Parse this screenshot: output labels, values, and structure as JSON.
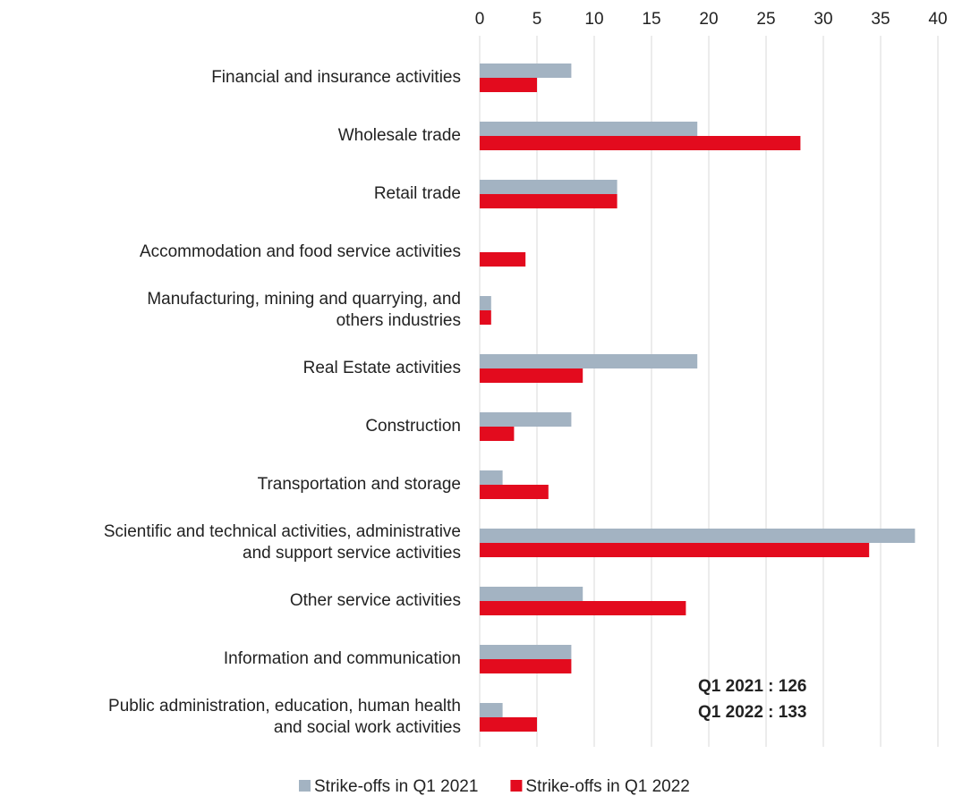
{
  "chart_data": {
    "type": "hbar",
    "categories": [
      "Financial and insurance activities",
      "Wholesale trade",
      "Retail trade",
      "Accommodation and food service activities",
      "Manufacturing, mining and quarrying, and\nothers industries",
      "Real Estate activities",
      "Construction",
      "Transportation and storage",
      "Scientific and technical activities, administrative\nand support service activities",
      "Other service activities",
      "Information and communication",
      "Public administration, education, human health\nand social work activities"
    ],
    "series": [
      {
        "name": "Strike-offs in Q1 2021",
        "color": "#a3b3c2",
        "values": [
          8,
          19,
          12,
          0,
          1,
          19,
          8,
          2,
          38,
          9,
          8,
          2
        ]
      },
      {
        "name": "Strike-offs in Q1 2022",
        "color": "#e30b1e",
        "values": [
          5,
          28,
          12,
          4,
          1,
          9,
          3,
          6,
          34,
          18,
          8,
          5
        ]
      }
    ],
    "xlim": [
      0,
      40
    ],
    "xticks": [
      0,
      5,
      10,
      15,
      20,
      25,
      30,
      35,
      40
    ],
    "grid": true,
    "legend": "bottom",
    "annotations": [
      "Q1 2021 : 126",
      "Q1 2022 : 133"
    ]
  }
}
